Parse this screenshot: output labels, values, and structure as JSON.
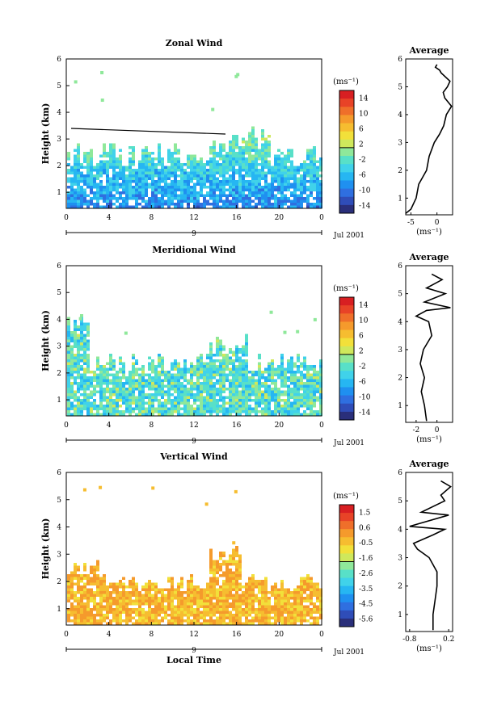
{
  "chart_data": [
    {
      "type": "heatmap",
      "title": "Zonal Wind",
      "ylabel": "Height (km)",
      "y_ticks": [
        "1",
        "2",
        "3",
        "4",
        "5",
        "6"
      ],
      "x_ticks": [
        "0",
        "4",
        "8",
        "12",
        "16",
        "20",
        "0"
      ],
      "day_label": "9",
      "date_label": "Jul 2001",
      "xlabel": "",
      "xlim": [
        0,
        24
      ],
      "ylim": [
        0.4,
        6
      ],
      "colorbar": {
        "unit": "(ms⁻¹)",
        "labels": [
          "14",
          "10",
          "6",
          "2",
          "-2",
          "-6",
          "-10",
          "-14"
        ],
        "range": [
          -16,
          16
        ]
      },
      "profile": {
        "title": "Average",
        "x_ticks": [
          "-5",
          "0"
        ],
        "xlim": [
          -6,
          3
        ],
        "xunit": "(ms⁻¹)",
        "points": [
          [
            -6,
            0.45
          ],
          [
            -5,
            0.6
          ],
          [
            -4,
            1.0
          ],
          [
            -3.5,
            1.5
          ],
          [
            -2,
            2.0
          ],
          [
            -1.5,
            2.5
          ],
          [
            -0.5,
            3.0
          ],
          [
            0.5,
            3.3
          ],
          [
            1.3,
            3.6
          ],
          [
            1.8,
            4.0
          ],
          [
            2.8,
            4.3
          ],
          [
            1.5,
            4.6
          ],
          [
            1.2,
            4.8
          ],
          [
            2,
            5.0
          ],
          [
            2.5,
            5.2
          ],
          [
            0.8,
            5.5
          ],
          [
            0.5,
            5.6
          ],
          [
            -0.3,
            5.7
          ],
          [
            0,
            5.8
          ]
        ]
      }
    },
    {
      "type": "heatmap",
      "title": "Meridional Wind",
      "ylabel": "Height (km)",
      "y_ticks": [
        "1",
        "2",
        "3",
        "4",
        "5",
        "6"
      ],
      "x_ticks": [
        "0",
        "4",
        "8",
        "12",
        "16",
        "20",
        "0"
      ],
      "day_label": "9",
      "date_label": "Jul 2001",
      "xlabel": "",
      "xlim": [
        0,
        24
      ],
      "ylim": [
        0.4,
        6
      ],
      "colorbar": {
        "unit": "(ms⁻¹)",
        "labels": [
          "14",
          "10",
          "6",
          "2",
          "-2",
          "-6",
          "-10",
          "-14"
        ],
        "range": [
          -16,
          16
        ]
      },
      "profile": {
        "title": "Average",
        "x_ticks": [
          "-2",
          "0"
        ],
        "xlim": [
          -3,
          1.5
        ],
        "xunit": "(ms⁻¹)",
        "points": [
          [
            -1,
            0.45
          ],
          [
            -1.2,
            1.0
          ],
          [
            -1.5,
            1.5
          ],
          [
            -1.2,
            2.0
          ],
          [
            -1.6,
            2.5
          ],
          [
            -1.3,
            3.0
          ],
          [
            -0.5,
            3.5
          ],
          [
            -0.8,
            4.0
          ],
          [
            -2.0,
            4.2
          ],
          [
            -1.0,
            4.4
          ],
          [
            1.3,
            4.5
          ],
          [
            -1.2,
            4.7
          ],
          [
            0.8,
            5.0
          ],
          [
            -1.0,
            5.2
          ],
          [
            0.5,
            5.5
          ],
          [
            -0.5,
            5.7
          ]
        ]
      }
    },
    {
      "type": "heatmap",
      "title": "Vertical Wind",
      "ylabel": "Height (km)",
      "y_ticks": [
        "1",
        "2",
        "3",
        "4",
        "5",
        "6"
      ],
      "x_ticks": [
        "0",
        "4",
        "8",
        "12",
        "16",
        "20",
        "0"
      ],
      "day_label": "9",
      "date_label": "Jul 2001",
      "xlabel": "Local Time",
      "xlim": [
        0,
        24
      ],
      "ylim": [
        0.4,
        6
      ],
      "colorbar": {
        "unit": "(ms⁻¹)",
        "labels": [
          "1.5",
          "0.6",
          "-0.5",
          "-1.6",
          "-2.6",
          "-3.5",
          "-4.5",
          "-5.6"
        ],
        "range": [
          -6,
          2
        ]
      },
      "profile": {
        "title": "Average",
        "x_ticks": [
          "-0.8",
          "0.2"
        ],
        "xlim": [
          -0.9,
          0.3
        ],
        "xunit": "(ms⁻¹)",
        "points": [
          [
            -0.2,
            0.45
          ],
          [
            -0.2,
            1.0
          ],
          [
            -0.15,
            1.5
          ],
          [
            -0.1,
            2.0
          ],
          [
            -0.1,
            2.5
          ],
          [
            -0.3,
            3.0
          ],
          [
            -0.6,
            3.3
          ],
          [
            -0.7,
            3.5
          ],
          [
            -0.2,
            3.8
          ],
          [
            0.1,
            4.0
          ],
          [
            -0.8,
            4.1
          ],
          [
            0.2,
            4.5
          ],
          [
            -0.5,
            4.6
          ],
          [
            0.1,
            5.0
          ],
          [
            0.0,
            5.2
          ],
          [
            0.25,
            5.5
          ],
          [
            0.0,
            5.7
          ]
        ]
      }
    }
  ],
  "colors": {
    "scale": [
      "#2a2f7a",
      "#2f4db8",
      "#2f6fe0",
      "#1f90f0",
      "#26b6f2",
      "#40d2ea",
      "#58e0c8",
      "#8fe89a",
      "#cfe85c",
      "#f2e03a",
      "#f6bd30",
      "#f59a2c",
      "#ef6f2a",
      "#e84327",
      "#d81f22"
    ]
  }
}
